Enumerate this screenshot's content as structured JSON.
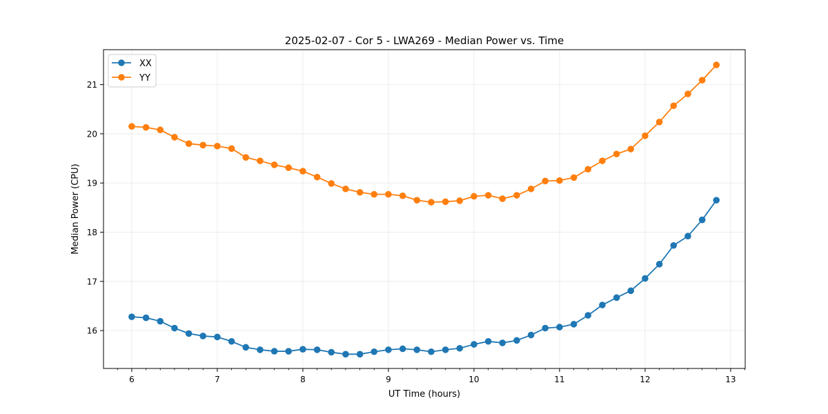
{
  "chart_data": {
    "type": "line",
    "title": "2025-02-07 - Cor 5 - LWA269 - Median Power vs. Time",
    "xlabel": "UT Time (hours)",
    "ylabel": "Median Power (CPU)",
    "xlim": [
      5.67,
      13.17
    ],
    "ylim": [
      15.23,
      21.71
    ],
    "xticks": [
      6,
      7,
      8,
      9,
      10,
      11,
      12,
      13
    ],
    "yticks": [
      16,
      17,
      18,
      19,
      20,
      21
    ],
    "grid": true,
    "legend_position": "upper-left",
    "x": [
      6.0,
      6.167,
      6.333,
      6.5,
      6.667,
      6.833,
      7.0,
      7.167,
      7.333,
      7.5,
      7.667,
      7.833,
      8.0,
      8.167,
      8.333,
      8.5,
      8.667,
      8.833,
      9.0,
      9.167,
      9.333,
      9.5,
      9.667,
      9.833,
      10.0,
      10.167,
      10.333,
      10.5,
      10.667,
      10.833,
      11.0,
      11.167,
      11.333,
      11.5,
      11.667,
      11.833,
      12.0,
      12.167,
      12.333,
      12.5,
      12.667,
      12.833
    ],
    "series": [
      {
        "name": "XX",
        "color": "#1f77b4",
        "values": [
          16.28,
          16.26,
          16.19,
          16.05,
          15.94,
          15.89,
          15.87,
          15.78,
          15.66,
          15.61,
          15.58,
          15.58,
          15.62,
          15.61,
          15.56,
          15.52,
          15.52,
          15.57,
          15.61,
          15.63,
          15.61,
          15.57,
          15.61,
          15.64,
          15.72,
          15.78,
          15.75,
          15.8,
          15.91,
          16.05,
          16.07,
          16.13,
          16.31,
          16.52,
          16.67,
          16.81,
          17.06,
          17.35,
          17.73,
          17.92,
          18.25,
          18.65
        ]
      },
      {
        "name": "YY",
        "color": "#ff7f0e",
        "values": [
          20.15,
          20.13,
          20.08,
          19.93,
          19.8,
          19.77,
          19.75,
          19.7,
          19.52,
          19.45,
          19.37,
          19.31,
          19.24,
          19.12,
          18.99,
          18.88,
          18.81,
          18.77,
          18.77,
          18.74,
          18.65,
          18.61,
          18.62,
          18.64,
          18.73,
          18.75,
          18.68,
          18.75,
          18.88,
          19.04,
          19.05,
          19.11,
          19.28,
          19.45,
          19.59,
          19.69,
          19.96,
          20.24,
          20.57,
          20.81,
          21.09,
          21.4
        ]
      }
    ]
  }
}
